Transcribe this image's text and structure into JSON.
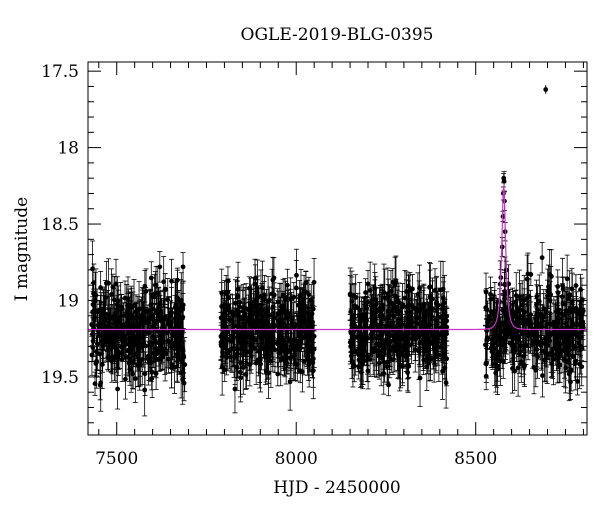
{
  "chart_data": {
    "type": "scatter",
    "title": "OGLE-2019-BLG-0395",
    "xlabel": "HJD - 2450000",
    "ylabel": "I magnitude",
    "xlim": [
      7420,
      8810
    ],
    "ylim": [
      19.88,
      17.44
    ],
    "y_inverted": true,
    "grid": false,
    "legend": "none",
    "x_ticks": [
      7500,
      8000,
      8500
    ],
    "y_ticks": [
      17.5,
      18,
      18.5,
      19,
      19.5
    ],
    "colors": {
      "points": "#000000",
      "model": "#cc33cc"
    },
    "observing_seasons": [
      {
        "x_range": [
          7430,
          7690
        ],
        "mean_mag": 19.2,
        "scatter": 0.22,
        "n_points": 380
      },
      {
        "x_range": [
          7790,
          8050
        ],
        "mean_mag": 19.2,
        "scatter": 0.22,
        "n_points": 400
      },
      {
        "x_range": [
          8150,
          8420
        ],
        "mean_mag": 19.2,
        "scatter": 0.22,
        "n_points": 400
      },
      {
        "x_range": [
          8525,
          8800
        ],
        "mean_mag": 19.2,
        "scatter": 0.22,
        "n_points": 360
      }
    ],
    "peak_points": [
      {
        "x": 8578,
        "y": 18.2
      },
      {
        "x": 8579,
        "y": 18.22
      },
      {
        "x": 8577,
        "y": 18.3
      },
      {
        "x": 8580,
        "y": 18.35
      },
      {
        "x": 8576,
        "y": 18.45
      },
      {
        "x": 8582,
        "y": 18.55
      },
      {
        "x": 8574,
        "y": 18.65
      },
      {
        "x": 8585,
        "y": 18.8
      },
      {
        "x": 8570,
        "y": 18.85
      },
      {
        "x": 8590,
        "y": 18.95
      }
    ],
    "outlier_points": [
      {
        "x": 8685,
        "y": 18.72
      },
      {
        "x": 7620,
        "y": 18.78
      }
    ],
    "typical_error_bar": {
      "x": 8695,
      "y": 17.62,
      "err": 0.015
    },
    "model": {
      "type": "microlensing",
      "baseline": 19.19,
      "peak_mag": 18.25,
      "t0": 8578,
      "tE": 10
    }
  }
}
